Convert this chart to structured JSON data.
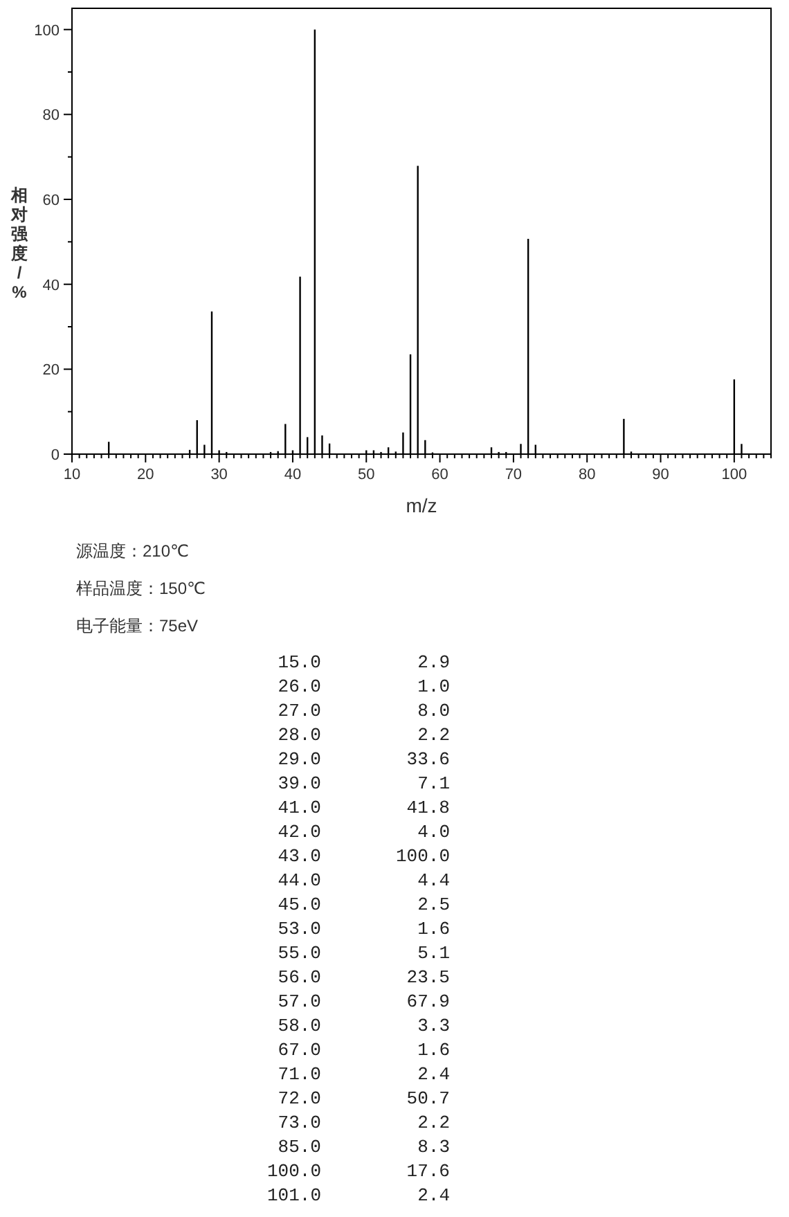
{
  "chart_data": {
    "type": "bar",
    "xlabel": "m/z",
    "ylabel": "相对强度/%",
    "annotations": [
      "源温度：210℃",
      "样品温度：150℃",
      "电子能量：75eV",
      "15.0",
      "2.9",
      "26.0",
      "1.0",
      "27.0",
      "8.0",
      "28.0",
      "2.2",
      "29.0",
      "33.6",
      "39.0",
      "7.1",
      "41.0",
      "41.8",
      "42.0",
      "4.0",
      "43.0",
      "100.0",
      "44.0",
      "4.4",
      "45.0",
      "2.5",
      "53.0",
      "1.6",
      "55.0",
      "5.1",
      "56.0",
      "23.5",
      "57.0",
      "67.9",
      "58.0",
      "3.3",
      "67.0",
      "1.6",
      "71.0",
      "2.4",
      "72.0",
      "50.7",
      "73.0",
      "2.2",
      "85.0",
      "8.3",
      "100.0",
      "17.6",
      "101.0",
      "2.4"
    ],
    "xlim": [
      10,
      105
    ],
    "ylim": [
      0,
      105
    ],
    "xticks": [
      10,
      {
        "value": 11,
        "label": null
      },
      {
        "value": 12,
        "label": null
      },
      {
        "value": 13,
        "label": null
      },
      {
        "value": 14,
        "label": null
      },
      {
        "value": 15,
        "label": null
      },
      {
        "value": 16,
        "label": null
      },
      {
        "value": 17,
        "label": null
      },
      {
        "value": 18,
        "label": null
      },
      {
        "value": 19,
        "label": null
      },
      20,
      {
        "value": 21,
        "label": null
      },
      {
        "value": 22,
        "label": null
      },
      {
        "value": 23,
        "label": null
      },
      {
        "value": 24,
        "label": null
      },
      {
        "value": 25,
        "label": null
      },
      {
        "value": 26,
        "label": null
      },
      {
        "value": 27,
        "label": null
      },
      {
        "value": 28,
        "label": null
      },
      {
        "value": 29,
        "label": null
      },
      30,
      {
        "value": 31,
        "label": null
      },
      {
        "value": 32,
        "label": null
      },
      {
        "value": 33,
        "label": null
      },
      {
        "value": 34,
        "label": null
      },
      {
        "value": 35,
        "label": null
      },
      {
        "value": 36,
        "label": null
      },
      {
        "value": 37,
        "label": null
      },
      {
        "value": 38,
        "label": null
      },
      {
        "value": 39,
        "label": null
      },
      40,
      {
        "value": 41,
        "label": null
      },
      {
        "value": 42,
        "label": null
      },
      {
        "value": 43,
        "label": null
      },
      {
        "value": 44,
        "label": null
      },
      {
        "value": 45,
        "label": null
      },
      {
        "value": 46,
        "label": null
      },
      {
        "value": 47,
        "label": null
      },
      {
        "value": 48,
        "label": null
      },
      {
        "value": 49,
        "label": null
      },
      50,
      {
        "value": 51,
        "label": null
      },
      {
        "value": 52,
        "label": null
      },
      {
        "value": 53,
        "label": null
      },
      {
        "value": 54,
        "label": null
      },
      {
        "value": 55,
        "label": null
      },
      {
        "value": 56,
        "label": null
      },
      {
        "value": 57,
        "label": null
      },
      {
        "value": 58,
        "label": null
      },
      {
        "value": 59,
        "label": null
      },
      60,
      {
        "value": 61,
        "label": null
      },
      {
        "value": 62,
        "label": null
      },
      {
        "value": 63,
        "label": null
      },
      {
        "value": 64,
        "label": null
      },
      {
        "value": 65,
        "label": null
      },
      {
        "value": 66,
        "label": null
      },
      {
        "value": 67,
        "label": null
      },
      {
        "value": 68,
        "label": null
      },
      {
        "value": 69,
        "label": null
      },
      70,
      {
        "value": 71,
        "label": null
      },
      {
        "value": 72,
        "label": null
      },
      {
        "value": 73,
        "label": null
      },
      {
        "value": 74,
        "label": null
      },
      {
        "value": 75,
        "label": null
      },
      {
        "value": 76,
        "label": null
      },
      {
        "value": 77,
        "label": null
      },
      {
        "value": 78,
        "label": null
      },
      {
        "value": 79,
        "label": null
      },
      80,
      {
        "value": 81,
        "label": null
      },
      {
        "value": 82,
        "label": null
      },
      {
        "value": 83,
        "label": null
      },
      {
        "value": 84,
        "label": null
      },
      {
        "value": 85,
        "label": null
      },
      {
        "value": 86,
        "label": null
      },
      {
        "value": 87,
        "label": null
      },
      {
        "value": 88,
        "label": null
      },
      {
        "value": 89,
        "label": null
      },
      90,
      {
        "value": 91,
        "label": null
      },
      {
        "value": 92,
        "label": null
      },
      {
        "value": 93,
        "label": null
      },
      {
        "value": 94,
        "label": null
      },
      {
        "value": 95,
        "label": null
      },
      {
        "value": 96,
        "label": null
      },
      {
        "value": 97,
        "label": null
      },
      {
        "value": 98,
        "label": null
      },
      {
        "value": 99,
        "label": null
      },
      100,
      {
        "value": 101,
        "label": null
      },
      {
        "value": 102,
        "label": null
      },
      {
        "value": 103,
        "label": null
      },
      {
        "value": 104,
        "label": null
      },
      {
        "value": 105,
        "label": null
      }
    ],
    "yticks": [
      0,
      {
        "value": 10,
        "label": null
      },
      20,
      {
        "value": 30,
        "label": null
      },
      40,
      {
        "value": 50,
        "label": null
      },
      60,
      {
        "value": 70,
        "label": null
      },
      80,
      {
        "value": 90,
        "label": null
      },
      100
    ],
    "series": [
      {
        "color": "#000000",
        "x": [
          15,
          26,
          27,
          28,
          29,
          30,
          31,
          37,
          38,
          39,
          40,
          41,
          42,
          43,
          44,
          45,
          50,
          51,
          52,
          53,
          54,
          55,
          56,
          57,
          58,
          59,
          67,
          68,
          69,
          71,
          72,
          73,
          85,
          86,
          100,
          101
        ],
        "values": [
          2.9,
          1.0,
          8.0,
          2.2,
          33.6,
          0.9,
          0.5,
          0.5,
          0.7,
          7.1,
          0.9,
          41.8,
          4.0,
          100.0,
          4.4,
          2.5,
          0.9,
          0.9,
          0.5,
          1.6,
          0.6,
          5.1,
          23.5,
          67.9,
          3.3,
          0.4,
          1.6,
          0.5,
          0.5,
          2.4,
          50.7,
          2.2,
          8.3,
          0.6,
          17.6,
          2.4
        ]
      }
    ]
  }
}
